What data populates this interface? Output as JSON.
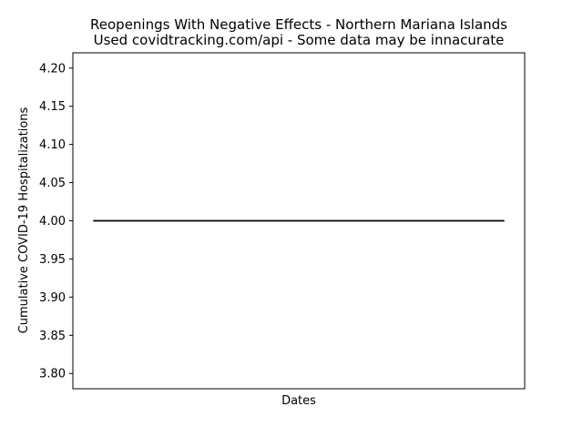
{
  "chart_data": {
    "type": "line",
    "title_lines": [
      "Reopenings With Negative Effects - Northern Mariana Islands",
      "Used covidtracking.com/api - Some data may be innacurate"
    ],
    "xlabel": "Dates",
    "ylabel": "Cumulative COVID-19 Hospitalizations",
    "ylim": [
      3.78,
      4.22
    ],
    "yticks": [
      "3.80",
      "3.85",
      "3.90",
      "3.95",
      "4.00",
      "4.05",
      "4.10",
      "4.15",
      "4.20"
    ],
    "x_ticks_shown": false,
    "grid": false,
    "legend": "none",
    "series": [
      {
        "color": "#000000",
        "values": [
          4,
          4
        ]
      }
    ]
  }
}
